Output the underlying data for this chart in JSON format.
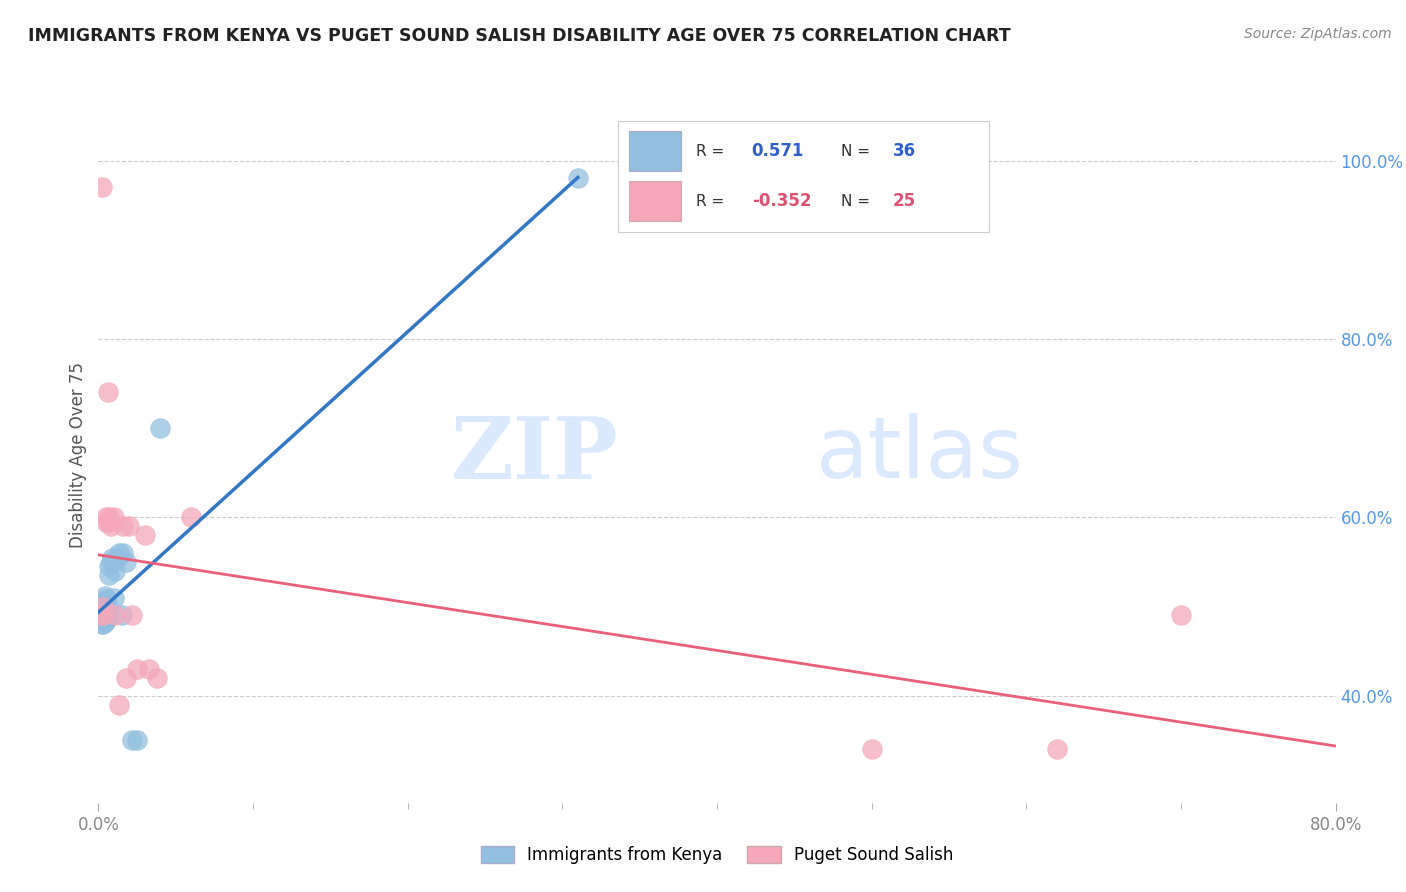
{
  "title": "IMMIGRANTS FROM KENYA VS PUGET SOUND SALISH DISABILITY AGE OVER 75 CORRELATION CHART",
  "source": "Source: ZipAtlas.com",
  "ylabel": "Disability Age Over 75",
  "legend_label1": "Immigrants from Kenya",
  "legend_label2": "Puget Sound Salish",
  "r1": 0.571,
  "n1": 36,
  "r2": -0.352,
  "n2": 25,
  "color1": "#92BFE0",
  "color2": "#F4A8BA",
  "line_color1": "#3378C8",
  "line_color2": "#E8607A",
  "xlim": [
    0.0,
    0.8
  ],
  "ylim": [
    0.28,
    1.06
  ],
  "y_ticks_right": [
    0.4,
    0.6,
    0.8,
    1.0
  ],
  "y_tick_labels_right": [
    "40.0%",
    "60.0%",
    "80.0%",
    "100.0%"
  ],
  "watermark_zip": "ZIP",
  "watermark_atlas": "atlas",
  "blue_x": [
    0.001,
    0.001,
    0.002,
    0.002,
    0.002,
    0.003,
    0.003,
    0.003,
    0.003,
    0.003,
    0.004,
    0.004,
    0.004,
    0.004,
    0.004,
    0.005,
    0.005,
    0.005,
    0.005,
    0.006,
    0.006,
    0.007,
    0.007,
    0.008,
    0.009,
    0.01,
    0.011,
    0.012,
    0.013,
    0.015,
    0.016,
    0.018,
    0.022,
    0.025,
    0.04,
    0.31
  ],
  "blue_y": [
    0.49,
    0.495,
    0.48,
    0.49,
    0.5,
    0.48,
    0.488,
    0.493,
    0.498,
    0.505,
    0.483,
    0.49,
    0.498,
    0.505,
    0.512,
    0.485,
    0.492,
    0.5,
    0.508,
    0.49,
    0.5,
    0.535,
    0.545,
    0.55,
    0.555,
    0.51,
    0.54,
    0.555,
    0.56,
    0.49,
    0.56,
    0.55,
    0.35,
    0.35,
    0.7,
    0.98
  ],
  "pink_x": [
    0.001,
    0.002,
    0.003,
    0.003,
    0.005,
    0.005,
    0.006,
    0.007,
    0.007,
    0.008,
    0.01,
    0.011,
    0.013,
    0.016,
    0.018,
    0.02,
    0.022,
    0.025,
    0.03,
    0.033,
    0.038,
    0.06,
    0.5,
    0.62,
    0.7
  ],
  "pink_y": [
    0.49,
    0.97,
    0.49,
    0.5,
    0.595,
    0.6,
    0.74,
    0.595,
    0.6,
    0.59,
    0.6,
    0.49,
    0.39,
    0.59,
    0.42,
    0.59,
    0.49,
    0.43,
    0.58,
    0.43,
    0.42,
    0.6,
    0.34,
    0.34,
    0.49
  ],
  "blue_line_x": [
    0.0,
    0.31
  ],
  "pink_line_x": [
    0.0,
    0.8
  ],
  "grid_color": "#CCCCCC",
  "tick_color": "#888888",
  "right_tick_color": "#5599EE"
}
